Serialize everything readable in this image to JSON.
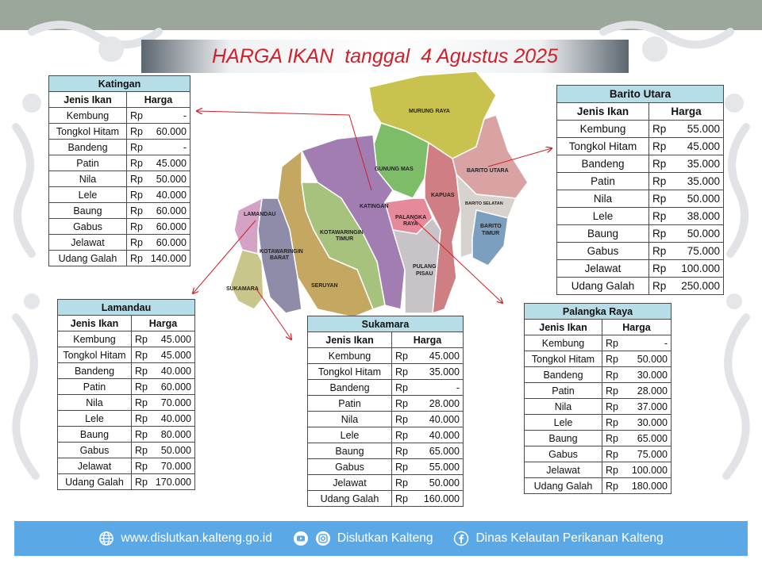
{
  "title": "HARGA IKAN  tanggal  4 Agustus 2025",
  "headers": {
    "jenis": "Jenis Ikan",
    "harga": "Harga"
  },
  "currency": "Rp",
  "tables": {
    "katingan": {
      "region": "Katingan",
      "rows": [
        {
          "name": "Kembung",
          "price": "-"
        },
        {
          "name": "Tongkol Hitam",
          "price": "60.000"
        },
        {
          "name": "Bandeng",
          "price": "-"
        },
        {
          "name": "Patin",
          "price": "45.000"
        },
        {
          "name": "Nila",
          "price": "50.000"
        },
        {
          "name": "Lele",
          "price": "40.000"
        },
        {
          "name": "Baung",
          "price": "60.000"
        },
        {
          "name": "Gabus",
          "price": "60.000"
        },
        {
          "name": "Jelawat",
          "price": "60.000"
        },
        {
          "name": "Udang Galah",
          "price": "140.000"
        }
      ]
    },
    "barito_utara": {
      "region": "Barito Utara",
      "rows": [
        {
          "name": "Kembung",
          "price": "55.000"
        },
        {
          "name": "Tongkol Hitam",
          "price": "45.000"
        },
        {
          "name": "Bandeng",
          "price": "35.000"
        },
        {
          "name": "Patin",
          "price": "35.000"
        },
        {
          "name": "Nila",
          "price": "50.000"
        },
        {
          "name": "Lele",
          "price": "38.000"
        },
        {
          "name": "Baung",
          "price": "50.000"
        },
        {
          "name": "Gabus",
          "price": "75.000"
        },
        {
          "name": "Jelawat",
          "price": "100.000"
        },
        {
          "name": "Udang Galah",
          "price": "250.000"
        }
      ]
    },
    "lamandau": {
      "region": "Lamandau",
      "rows": [
        {
          "name": "Kembung",
          "price": "45.000"
        },
        {
          "name": "Tongkol Hitam",
          "price": "45.000"
        },
        {
          "name": "Bandeng",
          "price": "40.000"
        },
        {
          "name": "Patin",
          "price": "60.000"
        },
        {
          "name": "Nila",
          "price": "70.000"
        },
        {
          "name": "Lele",
          "price": "40.000"
        },
        {
          "name": "Baung",
          "price": "80.000"
        },
        {
          "name": "Gabus",
          "price": "50.000"
        },
        {
          "name": "Jelawat",
          "price": "70.000"
        },
        {
          "name": "Udang Galah",
          "price": "170.000"
        }
      ]
    },
    "sukamara": {
      "region": "Sukamara",
      "rows": [
        {
          "name": "Kembung",
          "price": "45.000"
        },
        {
          "name": "Tongkol Hitam",
          "price": "35.000"
        },
        {
          "name": "Bandeng",
          "price": "-"
        },
        {
          "name": "Patin",
          "price": "28.000"
        },
        {
          "name": "Nila",
          "price": "40.000"
        },
        {
          "name": "Lele",
          "price": "40.000"
        },
        {
          "name": "Baung",
          "price": "65.000"
        },
        {
          "name": "Gabus",
          "price": "55.000"
        },
        {
          "name": "Jelawat",
          "price": "50.000"
        },
        {
          "name": "Udang Galah",
          "price": "160.000"
        }
      ]
    },
    "palangka_raya": {
      "region": "Palangka Raya",
      "rows": [
        {
          "name": "Kembung",
          "price": "-"
        },
        {
          "name": "Tongkol Hitam",
          "price": "50.000"
        },
        {
          "name": "Bandeng",
          "price": "30.000"
        },
        {
          "name": "Patin",
          "price": "28.000"
        },
        {
          "name": "Nila",
          "price": "37.000"
        },
        {
          "name": "Lele",
          "price": "30.000"
        },
        {
          "name": "Baung",
          "price": "65.000"
        },
        {
          "name": "Gabus",
          "price": "75.000"
        },
        {
          "name": "Jelawat",
          "price": "100.000"
        },
        {
          "name": "Udang Galah",
          "price": "180.000"
        }
      ]
    }
  },
  "map_labels": {
    "murung_raya": "MURUNG RAYA",
    "gunung_mas": "GUNUNG MAS",
    "barito_utara": "BARITO UTARA",
    "kapuas": "KAPUAS",
    "barito_selatan": "BARITO SELATAN",
    "barito_timur_1": "BARITO",
    "barito_timur_2": "TIMUR",
    "katingan": "KATINGAN",
    "palangka_1": "PALANGKA",
    "palangka_2": "RAYA",
    "lamandau": "LAMANDAU",
    "kotawaringin_timur_1": "KOTAWARINGIN",
    "kotawaringin_timur_2": "TIMUR",
    "kotawaringin_barat_1": "KOTAWARINGIN",
    "kotawaringin_barat_2": "BARAT",
    "seruyan": "SERUYAN",
    "pulang_pisau_1": "PULANG",
    "pulang_pisau_2": "PISAU",
    "sukamara": "SUKAMARA"
  },
  "colors": {
    "title": "#d0202a",
    "table_header": "#b7dee8",
    "footer": "#5aa8e6",
    "arrow": "#d0202a"
  },
  "footer": {
    "website": "www.dislutkan.kalteng.go.id",
    "social": "Dislutkan Kalteng",
    "facebook": "Dinas Kelautan Perikanan Kalteng",
    "icons": [
      "globe-icon",
      "youtube-icon",
      "instagram-icon",
      "facebook-icon"
    ]
  }
}
